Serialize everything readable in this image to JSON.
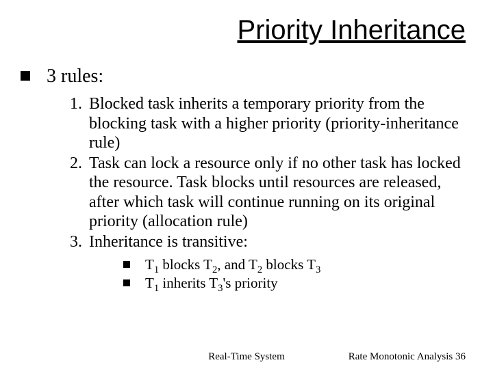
{
  "title": "Priority Inheritance",
  "heading": "3 rules:",
  "rules": [
    {
      "n": "1.",
      "text": "Blocked task inherits a temporary priority from the blocking task with a higher priority (priority-inheritance rule)"
    },
    {
      "n": "2.",
      "text": "Task can lock a resource only if no other task has locked the resource. Task blocks until resources are released, after which task will continue running on its original priority (allocation rule)"
    },
    {
      "n": "3.",
      "text": "Inheritance is transitive:"
    }
  ],
  "sub": {
    "line1_parts": [
      "T",
      "1",
      " blocks T",
      "2",
      ", and T",
      "2",
      " blocks T",
      "3"
    ],
    "line2_parts": [
      "T",
      "1",
      " inherits T",
      "3",
      "'s priority"
    ]
  },
  "footer": {
    "center": "Real-Time System",
    "right": "Rate Monotonic Analysis 36"
  },
  "style": {
    "background": "#ffffff",
    "text_color": "#000000",
    "title_fontsize": 40,
    "lvl1_fontsize": 28,
    "lvl2_fontsize": 24,
    "lvl3_fontsize": 21,
    "footer_fontsize": 15,
    "bullet_color": "#000000"
  }
}
